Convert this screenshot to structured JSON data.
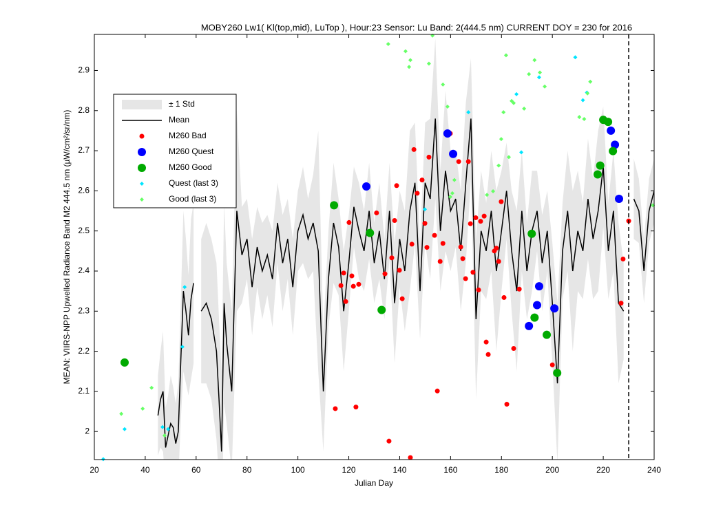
{
  "chart_data": {
    "type": "scatter",
    "title": "MOBY260   Lw1( Kl(top,mid), LuTop ),   Hour:23 Sensor: Lu Band: 2(444.5 nm)   CURRENT DOY = 230 for 2016",
    "xlabel": "Julian Day",
    "ylabel": "MEAN: VIIRS-NPP Upwelled Radiance Band M2 444.5 nm (µW/cm²/sr/nm)",
    "xlim": [
      20,
      240
    ],
    "ylim": [
      1.93,
      2.99
    ],
    "xticks": [
      20,
      40,
      60,
      80,
      100,
      120,
      140,
      160,
      180,
      200,
      220,
      240
    ],
    "yticks": [
      2,
      2.1,
      2.2,
      2.3,
      2.4,
      2.5,
      2.6,
      2.7,
      2.8,
      2.9
    ],
    "current_doy": 230,
    "legend": "upper left",
    "band": {
      "name": "± 1 Std",
      "color": "#e6e6e6"
    },
    "mean": {
      "name": "Mean",
      "color": "#000000",
      "x": [
        45,
        46,
        47,
        48,
        49,
        50,
        51,
        52,
        53,
        54,
        55,
        56,
        57,
        58,
        59,
        60,
        62,
        64,
        66,
        68,
        69,
        70,
        71,
        72,
        74,
        76,
        78,
        80,
        82,
        84,
        86,
        88,
        90,
        92,
        94,
        96,
        98,
        100,
        102,
        104,
        106,
        108,
        110,
        112,
        114,
        116,
        118,
        120,
        122,
        124,
        126,
        128,
        130,
        132,
        134,
        136,
        138,
        140,
        142,
        144,
        146,
        148,
        150,
        152,
        154,
        156,
        158,
        160,
        162,
        164,
        166,
        168,
        170,
        172,
        174,
        176,
        178,
        180,
        182,
        184,
        186,
        188,
        190,
        192,
        194,
        196,
        198,
        200,
        202,
        204,
        206,
        208,
        210,
        212,
        214,
        216,
        218,
        220,
        222,
        224,
        226,
        228,
        230,
        232,
        234,
        236,
        238,
        240
      ],
      "values": [
        2.04,
        2.08,
        2.1,
        1.96,
        1.99,
        2.02,
        2.01,
        1.97,
        2.0,
        2.18,
        2.35,
        2.3,
        2.24,
        2.33,
        2.37,
        null,
        2.3,
        2.32,
        2.28,
        2.2,
        2.08,
        1.95,
        2.32,
        2.22,
        2.1,
        2.55,
        2.44,
        2.48,
        2.36,
        2.46,
        2.4,
        2.44,
        2.38,
        2.52,
        2.42,
        2.48,
        2.36,
        2.5,
        2.54,
        2.48,
        2.52,
        2.45,
        2.1,
        2.38,
        2.52,
        2.46,
        2.3,
        2.42,
        2.56,
        2.5,
        2.45,
        2.55,
        2.42,
        2.5,
        2.38,
        2.55,
        2.32,
        2.48,
        2.4,
        2.55,
        2.62,
        2.35,
        2.62,
        2.58,
        2.78,
        2.5,
        2.65,
        2.55,
        2.58,
        2.45,
        2.62,
        2.78,
        2.28,
        2.5,
        2.45,
        2.55,
        2.4,
        2.5,
        2.6,
        2.45,
        2.35,
        2.55,
        2.4,
        2.5,
        2.55,
        2.42,
        2.5,
        2.32,
        2.12,
        2.45,
        2.55,
        2.4,
        2.5,
        2.45,
        2.58,
        2.48,
        2.55,
        2.66,
        2.45,
        2.55,
        2.32,
        2.3,
        null,
        2.58,
        2.55,
        2.4,
        2.55,
        2.6
      ],
      "std": [
        0.1,
        0.12,
        0.15,
        0.1,
        0.1,
        0.12,
        0.1,
        0.1,
        0.12,
        0.15,
        0.2,
        0.18,
        0.15,
        0.2,
        0.2,
        null,
        0.18,
        0.2,
        0.2,
        0.22,
        0.2,
        0.2,
        0.25,
        0.2,
        0.2,
        0.25,
        0.12,
        0.1,
        0.12,
        0.1,
        0.12,
        0.1,
        0.12,
        0.1,
        0.12,
        0.1,
        0.12,
        0.1,
        0.12,
        0.1,
        0.12,
        0.3,
        0.15,
        0.12,
        0.15,
        0.12,
        0.15,
        0.12,
        0.1,
        0.12,
        0.1,
        0.12,
        0.1,
        0.12,
        0.1,
        0.12,
        0.15,
        0.12,
        0.15,
        0.2,
        0.15,
        0.12,
        0.15,
        0.2,
        0.2,
        0.15,
        0.2,
        0.15,
        0.12,
        0.15,
        0.2,
        0.15,
        0.2,
        0.15,
        0.12,
        0.15,
        0.2,
        0.15,
        0.12,
        0.15,
        0.2,
        0.15,
        0.12,
        0.15,
        0.1,
        0.12,
        0.1,
        0.15,
        0.2,
        0.12,
        0.15,
        0.2,
        0.15,
        0.12,
        0.15,
        0.15,
        0.2,
        0.15,
        0.12,
        0.15,
        0.2,
        0.12,
        null,
        0.1,
        0.08,
        0.08,
        0.08,
        0.08
      ]
    },
    "series": [
      {
        "name": "M260 Bad",
        "color": "#ff0000",
        "marker": "circle",
        "size": 3.5,
        "x": [
          114.7,
          116.9,
          118,
          118.8,
          120.1,
          121.2,
          121.8,
          122.8,
          123.9,
          130.9,
          134.2,
          135.8,
          136.9,
          138,
          138.8,
          139.9,
          141,
          144.2,
          144.8,
          145.6,
          146.9,
          148.8,
          149.9,
          150.7,
          151.5,
          153.7,
          154.8,
          155.9,
          157,
          159.9,
          163.2,
          164,
          164.8,
          165.9,
          167,
          167.8,
          168.8,
          169.9,
          171,
          171.8,
          173.2,
          174,
          174.8,
          177.2,
          178,
          178.9,
          179.9,
          181,
          182.1,
          184.8,
          187,
          200,
          227,
          227.8,
          230
        ],
        "values": [
          2.057,
          2.364,
          2.395,
          2.324,
          2.521,
          2.388,
          2.362,
          2.061,
          2.367,
          2.545,
          2.393,
          1.976,
          2.433,
          2.526,
          2.613,
          2.402,
          2.331,
          1.935,
          2.467,
          2.703,
          2.594,
          2.627,
          2.519,
          2.459,
          2.684,
          2.489,
          2.101,
          2.424,
          2.469,
          2.743,
          2.673,
          2.46,
          2.431,
          2.381,
          2.673,
          2.518,
          2.397,
          2.533,
          2.353,
          2.524,
          2.537,
          2.223,
          2.192,
          2.45,
          2.457,
          2.424,
          2.573,
          2.334,
          2.068,
          2.207,
          2.355,
          2.166,
          2.32,
          2.43,
          2.525
        ]
      },
      {
        "name": "M260 Quest",
        "color": "#0000ff",
        "marker": "circle",
        "size": 6,
        "x": [
          126.9,
          158.8,
          161,
          190.8,
          194,
          194.8,
          200.8,
          223,
          224.6,
          226.2
        ],
        "values": [
          2.611,
          2.743,
          2.692,
          2.263,
          2.315,
          2.362,
          2.307,
          2.75,
          2.715,
          2.58
        ]
      },
      {
        "name": "M260 Good",
        "color": "#00aa00",
        "marker": "circle",
        "size": 6,
        "x": [
          31.9,
          114.2,
          128.3,
          132.9,
          191.9,
          193,
          197.8,
          201.9,
          217.8,
          218.8,
          220,
          221.9,
          223.8
        ],
        "values": [
          2.172,
          2.564,
          2.495,
          2.303,
          2.493,
          2.284,
          2.241,
          2.146,
          2.641,
          2.663,
          2.777,
          2.772,
          2.699
        ]
      },
      {
        "name": "Quest (last 3)",
        "color": "#00e5ff",
        "marker": "diamond",
        "size": 3,
        "x": [
          23.5,
          31.9,
          46.8,
          49,
          54.6,
          55.5,
          149.9,
          167,
          185.9,
          187.8,
          194.8,
          209,
          212,
          213.6
        ],
        "values": [
          1.931,
          2.006,
          2.011,
          2.006,
          2.211,
          2.36,
          2.554,
          2.796,
          2.841,
          2.696,
          2.883,
          2.933,
          2.826,
          2.845
        ]
      },
      {
        "name": "Good (last 3)",
        "color": "#66ff66",
        "marker": "diamond",
        "size": 3,
        "x": [
          30.6,
          39,
          42.5,
          47.6,
          135.5,
          142.3,
          143.7,
          144.2,
          151.5,
          152.9,
          157,
          158.8,
          159.9,
          160.7,
          161.5,
          174.3,
          176.7,
          178.9,
          179.9,
          180.8,
          181.8,
          182.9,
          184,
          184.8,
          188.9,
          190.8,
          193,
          195.1,
          197,
          210.6,
          212.5,
          213.8,
          214.9,
          239.5
        ],
        "values": [
          2.044,
          2.057,
          2.109,
          1.99,
          2.966,
          2.948,
          2.909,
          2.926,
          2.917,
          2.987,
          2.865,
          2.81,
          2.585,
          2.594,
          2.627,
          2.59,
          2.599,
          2.663,
          2.729,
          2.796,
          2.938,
          2.684,
          2.824,
          2.819,
          2.805,
          2.891,
          2.926,
          2.895,
          2.86,
          2.784,
          2.779,
          2.843,
          2.872,
          2.564
        ]
      }
    ]
  }
}
